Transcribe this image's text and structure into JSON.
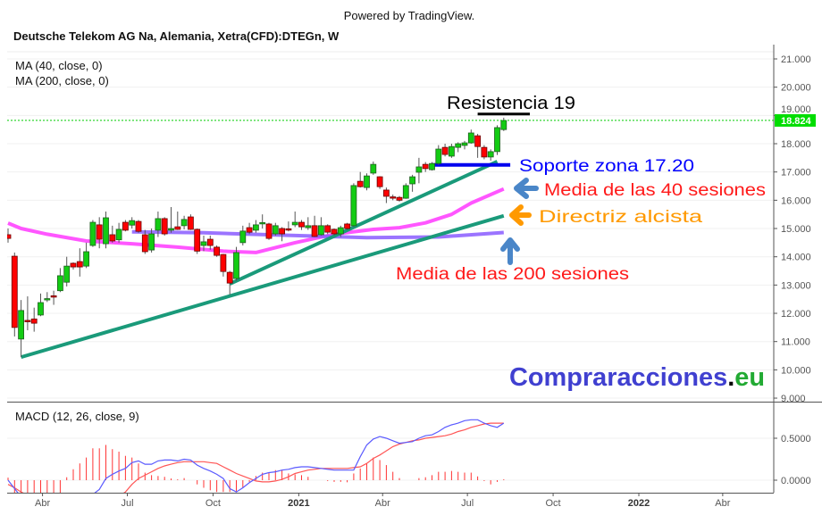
{
  "header": {
    "powered_by": "Powered by TradingView.",
    "title": "Deutsche Telekom AG Na, Alemania, Xetra(CFD):DTEGn, W"
  },
  "legend": {
    "ma40": "MA (40, close, 0)",
    "ma200": "MA (200, close, 0)",
    "macd": "MACD (12, 26, close, 9)"
  },
  "annotations": {
    "resistance": "Resistencia 19",
    "support": "Soporte zona 17.20",
    "ma40": "Media de las 40 sesiones",
    "trend": "Directriz alcista",
    "ma200": "Media de las 200 sesiones"
  },
  "watermark": {
    "main": "Compraracciones",
    "dot": ".",
    "tld": "eu"
  },
  "colors": {
    "up": "#13cc13",
    "down": "#ff0000",
    "ma40": "#ff44ff",
    "ma200": "#8a5cff",
    "trendline": "#1a9a7a",
    "support": "#0000ee",
    "resistance": "#000000",
    "last_price": "#00cc00",
    "macd": "#5a5aff",
    "signal": "#ff5555",
    "histogram": "#ff3333",
    "arrow_blue": "#4a86c8",
    "arrow_orange": "#ff9900",
    "ann_blue": "#0000ff",
    "ann_red": "#ff1a1a",
    "ann_orange": "#ff9900",
    "wm_blue": "#4040d0",
    "wm_green": "#22aa33"
  },
  "chart_data": [
    {
      "type": "candlestick",
      "title": "Deutsche Telekom AG Na, Alemania, Xetra(CFD):DTEGn, W",
      "ylim": [
        9,
        21
      ],
      "yticks": [
        "9.000",
        "10.000",
        "11.000",
        "12.000",
        "13.000",
        "14.000",
        "15.000",
        "16.000",
        "17.000",
        "18.000",
        "19.000",
        "20.000",
        "21.000"
      ],
      "ytick_values": [
        9,
        10,
        11,
        12,
        13,
        14,
        15,
        16,
        17,
        18,
        19,
        20,
        21
      ],
      "last_price": 18.824,
      "last_price_label": "18.824",
      "grid": "horizontal",
      "xticks": [
        {
          "label": "Abr",
          "date": "2020-04-01"
        },
        {
          "label": "Jul",
          "date": "2020-07-01"
        },
        {
          "label": "Oct",
          "date": "2020-10-01"
        },
        {
          "label": "2021",
          "date": "2021-01-01",
          "bold": true
        },
        {
          "label": "Abr",
          "date": "2021-04-01"
        },
        {
          "label": "Jul",
          "date": "2021-07-01"
        },
        {
          "label": "Oct",
          "date": "2021-10-01"
        },
        {
          "label": "2022",
          "date": "2022-01-01",
          "bold": true
        },
        {
          "label": "Abr",
          "date": "2022-04-01"
        }
      ],
      "candles_fields": [
        "date",
        "open",
        "high",
        "low",
        "close"
      ],
      "candles": [
        [
          "2020-02-24",
          14.78,
          15.0,
          14.5,
          14.65
        ],
        [
          "2020-03-02",
          14.02,
          14.15,
          11.18,
          11.5
        ],
        [
          "2020-03-09",
          11.09,
          12.47,
          10.45,
          12.1
        ],
        [
          "2020-03-16",
          11.75,
          12.6,
          11.4,
          11.7
        ],
        [
          "2020-03-23",
          11.8,
          12.2,
          11.35,
          11.65
        ],
        [
          "2020-03-30",
          11.94,
          12.7,
          11.9,
          12.38
        ],
        [
          "2020-04-06",
          12.48,
          12.75,
          12.4,
          12.52
        ],
        [
          "2020-04-13",
          12.62,
          12.8,
          12.3,
          12.58
        ],
        [
          "2020-04-20",
          12.8,
          13.6,
          12.75,
          13.33
        ],
        [
          "2020-04-27",
          13.1,
          14.0,
          12.95,
          13.67
        ],
        [
          "2020-05-04",
          13.77,
          13.8,
          13.55,
          13.64
        ],
        [
          "2020-05-11",
          13.83,
          14.3,
          13.3,
          13.64
        ],
        [
          "2020-05-18",
          13.67,
          14.5,
          13.6,
          14.18
        ],
        [
          "2020-05-25",
          14.4,
          15.3,
          14.35,
          15.22
        ],
        [
          "2020-06-01",
          15.13,
          15.4,
          14.3,
          14.62
        ],
        [
          "2020-06-08",
          14.46,
          15.6,
          14.3,
          15.38
        ],
        [
          "2020-06-15",
          14.78,
          15.1,
          14.5,
          14.56
        ],
        [
          "2020-06-22",
          14.6,
          15.2,
          14.5,
          14.97
        ],
        [
          "2020-06-29",
          15.22,
          15.3,
          14.9,
          14.94
        ],
        [
          "2020-07-06",
          15.12,
          15.4,
          15.0,
          15.28
        ],
        [
          "2020-07-13",
          15.25,
          15.3,
          14.85,
          14.9
        ],
        [
          "2020-07-20",
          14.78,
          14.95,
          14.1,
          14.18
        ],
        [
          "2020-07-27",
          14.24,
          15.0,
          14.15,
          14.81
        ],
        [
          "2020-08-03",
          14.94,
          15.6,
          14.7,
          15.35
        ],
        [
          "2020-08-10",
          15.35,
          15.4,
          14.75,
          14.81
        ],
        [
          "2020-08-17",
          14.94,
          15.76,
          14.85,
          15.0
        ],
        [
          "2020-08-24",
          15.06,
          15.6,
          14.95,
          14.97
        ],
        [
          "2020-08-31",
          15.1,
          15.45,
          14.97,
          15.32
        ],
        [
          "2020-09-07",
          15.41,
          15.5,
          14.95,
          14.97
        ],
        [
          "2020-09-14",
          14.97,
          15.0,
          14.1,
          14.2
        ],
        [
          "2020-09-21",
          14.4,
          14.75,
          14.2,
          14.53
        ],
        [
          "2020-09-28",
          14.62,
          14.75,
          14.25,
          14.4
        ],
        [
          "2020-10-05",
          14.34,
          14.4,
          14.0,
          14.05
        ],
        [
          "2020-10-12",
          14.08,
          14.1,
          13.3,
          13.48
        ],
        [
          "2020-10-19",
          13.45,
          13.5,
          12.66,
          13.07
        ],
        [
          "2020-10-26",
          13.23,
          14.35,
          13.15,
          14.15
        ],
        [
          "2020-11-02",
          14.5,
          15.1,
          14.4,
          14.91
        ],
        [
          "2020-11-09",
          15.03,
          15.2,
          14.8,
          14.87
        ],
        [
          "2020-11-16",
          14.94,
          15.3,
          14.85,
          15.13
        ],
        [
          "2020-11-23",
          15.17,
          15.5,
          15.0,
          15.21
        ],
        [
          "2020-11-30",
          15.16,
          15.2,
          14.6,
          14.65
        ],
        [
          "2020-12-07",
          14.81,
          15.2,
          14.75,
          15.1
        ],
        [
          "2020-12-14",
          15.0,
          15.05,
          14.55,
          14.81
        ],
        [
          "2020-12-21",
          14.99,
          15.25,
          14.9,
          14.95
        ],
        [
          "2020-12-28",
          15.13,
          15.6,
          15.05,
          15.22
        ],
        [
          "2021-01-04",
          15.22,
          15.3,
          14.95,
          15.06
        ],
        [
          "2021-01-11",
          15.03,
          15.4,
          14.95,
          15.1
        ],
        [
          "2021-01-18",
          15.1,
          15.45,
          14.7,
          14.72
        ],
        [
          "2021-01-25",
          14.78,
          15.4,
          14.75,
          15.1
        ],
        [
          "2021-02-01",
          15.1,
          15.15,
          14.8,
          14.87
        ],
        [
          "2021-02-08",
          14.97,
          15.0,
          14.75,
          14.81
        ],
        [
          "2021-02-15",
          14.81,
          15.1,
          14.7,
          15.03
        ],
        [
          "2021-02-22",
          15.16,
          15.2,
          14.95,
          15.0
        ],
        [
          "2021-03-01",
          15.1,
          16.6,
          15.05,
          16.52
        ],
        [
          "2021-03-08",
          16.67,
          17.0,
          16.45,
          16.48
        ],
        [
          "2021-03-15",
          16.45,
          16.95,
          16.35,
          16.86
        ],
        [
          "2021-03-22",
          16.96,
          17.37,
          16.9,
          17.27
        ],
        [
          "2021-03-29",
          16.83,
          16.85,
          16.4,
          16.48
        ],
        [
          "2021-04-05",
          16.36,
          16.45,
          15.9,
          16.14
        ],
        [
          "2021-04-12",
          16.12,
          16.2,
          16.0,
          16.08
        ],
        [
          "2021-04-19",
          16.1,
          16.15,
          15.95,
          16.0
        ],
        [
          "2021-04-26",
          16.07,
          16.6,
          16.05,
          16.52
        ],
        [
          "2021-05-03",
          16.58,
          16.9,
          16.3,
          16.83
        ],
        [
          "2021-05-10",
          16.99,
          17.5,
          16.6,
          17.18
        ],
        [
          "2021-05-17",
          17.27,
          17.35,
          17.0,
          17.12
        ],
        [
          "2021-05-24",
          17.08,
          17.35,
          17.05,
          17.3
        ],
        [
          "2021-05-31",
          17.3,
          17.95,
          17.25,
          17.81
        ],
        [
          "2021-06-07",
          17.87,
          18.0,
          17.55,
          17.62
        ],
        [
          "2021-06-14",
          17.56,
          18.0,
          17.5,
          17.9
        ],
        [
          "2021-06-21",
          17.87,
          18.05,
          17.7,
          18.0
        ],
        [
          "2021-06-28",
          17.94,
          18.1,
          17.8,
          18.03
        ],
        [
          "2021-07-05",
          18.03,
          18.5,
          18.0,
          18.38
        ],
        [
          "2021-07-12",
          18.28,
          18.35,
          17.5,
          17.9
        ],
        [
          "2021-07-19",
          17.87,
          17.95,
          17.45,
          17.53
        ],
        [
          "2021-07-26",
          17.53,
          17.8,
          17.4,
          17.72
        ],
        [
          "2021-08-02",
          17.72,
          18.65,
          17.6,
          18.57
        ],
        [
          "2021-08-09",
          18.5,
          18.92,
          18.45,
          18.82
        ]
      ],
      "ma40": [
        [
          "2020-02-24",
          15.19
        ],
        [
          "2020-03-09",
          15.0
        ],
        [
          "2020-04-06",
          14.8
        ],
        [
          "2020-05-18",
          14.56
        ],
        [
          "2020-07-06",
          14.46
        ],
        [
          "2020-08-24",
          14.34
        ],
        [
          "2020-10-12",
          14.2
        ],
        [
          "2020-11-16",
          14.15
        ],
        [
          "2020-12-28",
          14.5
        ],
        [
          "2021-02-08",
          14.8
        ],
        [
          "2021-03-22",
          14.97
        ],
        [
          "2021-04-19",
          15.03
        ],
        [
          "2021-05-17",
          15.2
        ],
        [
          "2021-06-14",
          15.5
        ],
        [
          "2021-07-05",
          15.9
        ],
        [
          "2021-08-09",
          16.4
        ]
      ],
      "ma200": [
        [
          "2020-07-06",
          14.88
        ],
        [
          "2020-09-21",
          14.85
        ],
        [
          "2020-11-30",
          14.78
        ],
        [
          "2021-03-15",
          14.68
        ],
        [
          "2021-05-31",
          14.7
        ],
        [
          "2021-08-09",
          14.86
        ]
      ],
      "drawings": {
        "trendline_long": [
          [
            "2020-03-09",
            10.45
          ],
          [
            "2021-08-09",
            15.45
          ]
        ],
        "trendline_short": [
          [
            "2020-10-19",
            13.04
          ],
          [
            "2021-08-02",
            17.37
          ]
        ],
        "support": [
          [
            "2021-05-24",
            17.25
          ],
          [
            "2021-08-16",
            17.25
          ]
        ],
        "resistance": [
          [
            "2021-07-12",
            19.05
          ],
          [
            "2021-09-06",
            19.05
          ]
        ]
      }
    },
    {
      "type": "macd",
      "title": "MACD (12, 26, close, 9)",
      "yticks": [
        "0.0000",
        "0.5000"
      ],
      "ytick_values": [
        0,
        0.5
      ],
      "ylim": [
        -0.15,
        0.95
      ],
      "macd": [
        0,
        -0.1,
        -0.2,
        -0.28,
        -0.33,
        -0.36,
        -0.37,
        -0.36,
        -0.33,
        -0.29,
        -0.25,
        -0.2,
        -0.17,
        -0.17,
        -0.11,
        0.02,
        0.07,
        0.11,
        0.14,
        0.21,
        0.23,
        0.19,
        0.19,
        0.23,
        0.24,
        0.24,
        0.23,
        0.25,
        0.24,
        0.18,
        0.14,
        0.11,
        0.07,
        0.02,
        -0.1,
        -0.14,
        -0.09,
        -0.03,
        0.02,
        0.07,
        0.09,
        0.1,
        0.12,
        0.13,
        0.15,
        0.16,
        0.16,
        0.15,
        0.14,
        0.13,
        0.12,
        0.12,
        0.12,
        0.12,
        0.28,
        0.42,
        0.49,
        0.52,
        0.5,
        0.47,
        0.44,
        0.45,
        0.46,
        0.5,
        0.53,
        0.54,
        0.58,
        0.63,
        0.66,
        0.68,
        0.71,
        0.72,
        0.72,
        0.68,
        0.65,
        0.63,
        0.68
      ],
      "signal": [
        -0.05,
        -0.09,
        -0.14,
        -0.18,
        -0.22,
        -0.25,
        -0.27,
        -0.29,
        -0.3,
        -0.31,
        -0.31,
        -0.3,
        -0.28,
        -0.26,
        -0.3,
        -0.27,
        -0.23,
        -0.19,
        -0.14,
        -0.05,
        0.02,
        0.06,
        0.1,
        0.14,
        0.17,
        0.19,
        0.21,
        0.22,
        0.22,
        0.22,
        0.22,
        0.21,
        0.2,
        0.16,
        0.12,
        0.08,
        0.05,
        0.02,
        -0.01,
        -0.02,
        -0.02,
        -0.01,
        0.01,
        0.04,
        0.08,
        0.1,
        0.12,
        0.13,
        0.14,
        0.14,
        0.14,
        0.14,
        0.14,
        0.15,
        0.16,
        0.2,
        0.26,
        0.3,
        0.35,
        0.4,
        0.43,
        0.45,
        0.47,
        0.48,
        0.5,
        0.51,
        0.52,
        0.53,
        0.55,
        0.58,
        0.6,
        0.63,
        0.65,
        0.67,
        0.68,
        0.68,
        0.68
      ],
      "histogram": [
        0.03,
        -0.15,
        -0.15,
        -0.15,
        -0.15,
        -0.15,
        -0.15,
        -0.15,
        -0.15,
        0.035,
        0.13,
        0.2,
        0.27,
        0.38,
        0.38,
        0.42,
        0.37,
        0.34,
        0.29,
        0.27,
        0.2,
        0.09,
        0.06,
        0.05,
        0.04,
        0.02,
        0.01,
        0.025,
        0,
        -0.05,
        -0.09,
        -0.12,
        -0.14,
        -0.14,
        -0.14,
        -0.14,
        -0.09,
        -0.02,
        0.05,
        0.09,
        0.09,
        0.12,
        0.12,
        0.08,
        0.07,
        0.06,
        0.04,
        0,
        0,
        -0.01,
        -0.02,
        -0.02,
        -0.025,
        0.08,
        0.14,
        0.2,
        0.27,
        0.24,
        0.18,
        0.1,
        0.025,
        0,
        0,
        0.025,
        0.035,
        0.06,
        0.1,
        0.1,
        0.11,
        0.1,
        0.09,
        0.09,
        0.045,
        -0.01,
        -0.05,
        -0.02,
        0.01
      ]
    }
  ]
}
